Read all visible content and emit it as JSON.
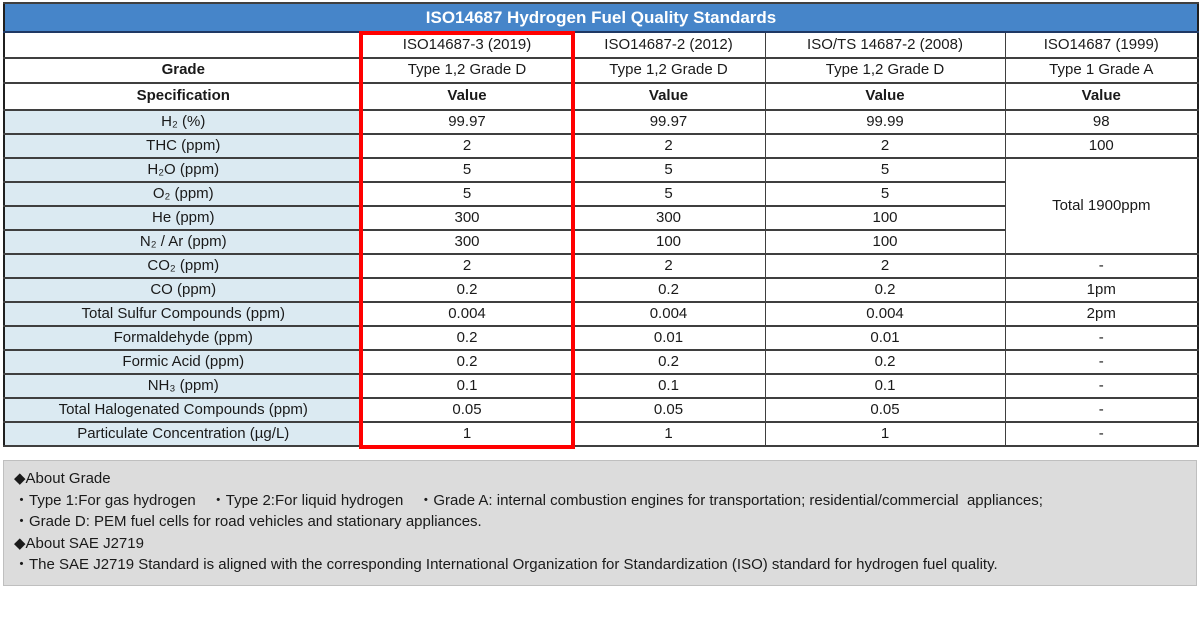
{
  "chart_data": {
    "type": "table",
    "title": "ISO14687 Hydrogen Fuel Quality Standards",
    "corner": {
      "grade_label": "Grade",
      "spec_label": "Specification"
    },
    "columns": [
      {
        "standard": "ISO14687-3 (2019)",
        "grade": "Type 1,2 Grade D",
        "header": "Value",
        "highlighted": true
      },
      {
        "standard": "ISO14687-2 (2012)",
        "grade": "Type 1,2 Grade D",
        "header": "Value",
        "highlighted": false
      },
      {
        "standard": "ISO/TS 14687-2 (2008)",
        "grade": "Type 1,2 Grade D",
        "header": "Value",
        "highlighted": false
      },
      {
        "standard": "ISO14687 (1999)",
        "grade": "Type 1 Grade A",
        "header": "Value",
        "highlighted": false
      }
    ],
    "rows": [
      {
        "spec": "H₂ (%)",
        "values": [
          "99.97",
          "99.97",
          "99.99",
          "98"
        ]
      },
      {
        "spec": "THC (ppm)",
        "values": [
          "2",
          "2",
          "2",
          "100"
        ]
      },
      {
        "spec": "H₂O (ppm)",
        "values": [
          "5",
          "5",
          "5",
          {
            "text": "Total 1900ppm",
            "rowspan": 4
          }
        ]
      },
      {
        "spec": "O₂ (ppm)",
        "values": [
          "5",
          "5",
          "5",
          null
        ]
      },
      {
        "spec": "He (ppm)",
        "values": [
          "300",
          "300",
          "100",
          null
        ]
      },
      {
        "spec": "N₂ / Ar (ppm)",
        "values": [
          "300",
          "100",
          "100",
          null
        ]
      },
      {
        "spec": "CO₂ (ppm)",
        "values": [
          "2",
          "2",
          "2",
          "-"
        ]
      },
      {
        "spec": "CO (ppm)",
        "values": [
          "0.2",
          "0.2",
          "0.2",
          "1pm"
        ]
      },
      {
        "spec": "Total Sulfur Compounds (ppm)",
        "values": [
          "0.004",
          "0.004",
          "0.004",
          "2pm"
        ]
      },
      {
        "spec": "Formaldehyde (ppm)",
        "values": [
          "0.2",
          "0.01",
          "0.01",
          "-"
        ]
      },
      {
        "spec": "Formic Acid (ppm)",
        "values": [
          "0.2",
          "0.2",
          "0.2",
          "-"
        ]
      },
      {
        "spec": "NH₃ (ppm)",
        "values": [
          "0.1",
          "0.1",
          "0.1",
          "-"
        ]
      },
      {
        "spec": "Total Halogenated Compounds (ppm)",
        "values": [
          "0.05",
          "0.05",
          "0.05",
          "-"
        ]
      },
      {
        "spec": "Particulate Concentration (µg/L)",
        "values": [
          "1",
          "1",
          "1",
          "-"
        ]
      }
    ],
    "merged_cell_note": "ISO14687 (1999) column merges H₂O, O₂, He, N₂/Ar rows into one cell reading Total 1900ppm",
    "highlight": "Red box outlines the ISO14687-3 (2019) column"
  },
  "notes": {
    "lines": [
      "◆About Grade",
      "・Type 1:For gas hydrogen　・Type 2:For liquid hydrogen　・Grade A: internal combustion engines for transportation; residential/commercial  appliances;",
      "・Grade D: PEM fuel cells for road vehicles and stationary appliances.",
      "◆About SAE J2719",
      "・The SAE J2719 Standard is aligned with the corresponding International Organization for Standardization (ISO) standard for hydrogen fuel quality."
    ]
  },
  "colors": {
    "title_bar": "#4685C9",
    "title_text": "#FFFFFF",
    "spec_cell_bg": "#DBEAF2",
    "highlight_box": "#FF0000",
    "notes_bg": "#DCDCDC",
    "grid_line": "#3F3F3F",
    "text": "#1A1A1A"
  }
}
